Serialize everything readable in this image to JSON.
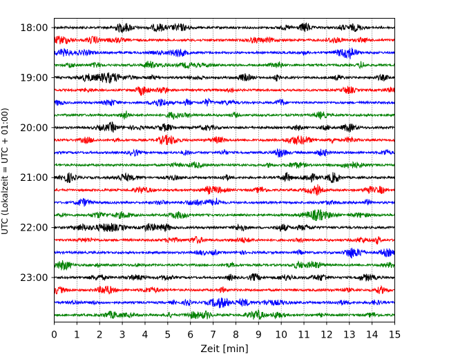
{
  "chart_data": {
    "type": "line",
    "subtype": "seismogram-helicorder",
    "xlabel": "Zeit  [min]",
    "ylabel": "UTC (Lokalzeit = UTC + 01:00)",
    "xlim": [
      0,
      15
    ],
    "x_ticks": [
      "0",
      "1",
      "2",
      "3",
      "4",
      "5",
      "6",
      "7",
      "8",
      "9",
      "10",
      "11",
      "12",
      "13",
      "14",
      "15"
    ],
    "y_ticks": [
      "18:00",
      "19:00",
      "20:00",
      "21:00",
      "22:00",
      "23:00"
    ],
    "grid": {
      "x": true,
      "y": false,
      "style": "dotted"
    },
    "trace_colors": [
      "#000000",
      "#ff0000",
      "#0000ff",
      "#008000"
    ],
    "trace_start_times": [
      "18:00",
      "18:15",
      "18:30",
      "18:45",
      "19:00",
      "19:15",
      "19:30",
      "19:45",
      "20:00",
      "20:15",
      "20:30",
      "20:45",
      "21:00",
      "21:15",
      "21:30",
      "21:45",
      "22:00",
      "22:15",
      "22:30",
      "22:45",
      "23:00",
      "23:15",
      "23:30",
      "23:45"
    ],
    "minutes_per_line": 15
  }
}
